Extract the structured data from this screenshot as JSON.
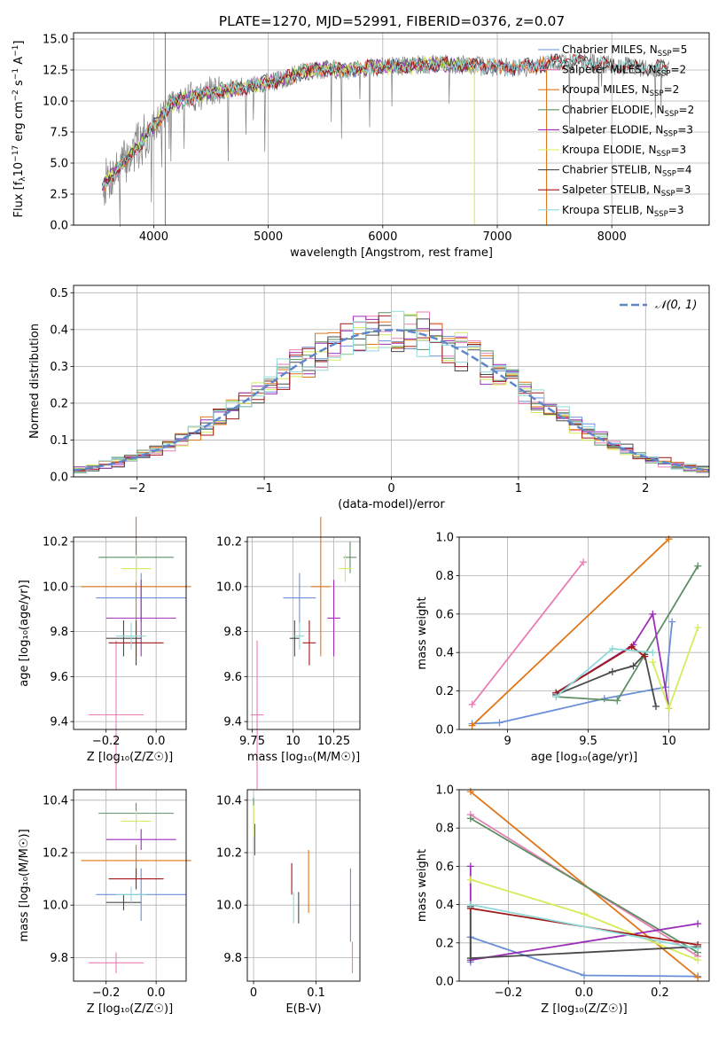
{
  "figure": {
    "title": "PLATE=1270, MJD=52991, FIBERID=0376, z=0.07"
  },
  "colors": {
    "Chabrier MILES": "#6a8fd8",
    "Salpeter MILES": "#e77fb6",
    "Kroupa MILES": "#e0761a",
    "Chabrier ELODIE": "#5f8f64",
    "Salpeter ELODIE": "#9b2fb8",
    "Kroupa ELODIE": "#d4ec5a",
    "Chabrier STELIB": "#4a4a4a",
    "Salpeter STELIB": "#a01818",
    "Kroupa STELIB": "#8fd9d9",
    "data": "#808080",
    "gaussian": "#5f86c9"
  },
  "chart_data": [
    {
      "id": "spectrum",
      "type": "line",
      "xlabel": "wavelength [Angstrom, rest frame]",
      "ylabel": "Flux [f$_\\lambda$10$^{-17}$ erg cm$^{-2}$ s$^{-1}$ A$^{-1}$]",
      "ylabel_parts": {
        "a": "Flux [f",
        "b": "λ",
        "c": "10",
        "d": "−17",
        "e": " erg cm",
        "f": "−2",
        "g": " s",
        "h": "−1",
        "i": " A",
        "j": "−1",
        "k": "]"
      },
      "xlim": [
        3300,
        8850
      ],
      "ylim": [
        0,
        15.5
      ],
      "xticks": [
        4000,
        5000,
        6000,
        7000,
        8000
      ],
      "yticks": [
        0.0,
        2.5,
        5.0,
        7.5,
        10.0,
        12.5,
        15.0
      ],
      "continuum": {
        "x": [
          3550,
          3700,
          3850,
          3950,
          4050,
          4150,
          4300,
          4500,
          4700,
          4900,
          5100,
          5300,
          5500,
          5700,
          5900,
          6100,
          6300,
          6500,
          6700,
          6900,
          7100,
          7300,
          7500,
          7700,
          7900,
          8100,
          8300,
          8500
        ],
        "y": [
          3.2,
          4.6,
          6.2,
          7.4,
          8.6,
          9.8,
          10.3,
          10.7,
          11.0,
          11.3,
          11.7,
          12.3,
          12.6,
          12.5,
          12.7,
          12.8,
          12.9,
          13.0,
          12.9,
          12.8,
          12.7,
          12.8,
          13.1,
          13.2,
          13.0,
          12.8,
          12.7,
          12.6
        ]
      },
      "series_names": [
        "Chabrier MILES",
        "Salpeter MILES",
        "Kroupa MILES",
        "Chabrier ELODIE",
        "Salpeter ELODIE",
        "Kroupa ELODIE",
        "Chabrier STELIB",
        "Salpeter STELIB",
        "Kroupa STELIB"
      ],
      "n_ssp": [
        5,
        2,
        2,
        2,
        3,
        3,
        4,
        3,
        3
      ],
      "legend_prefix": ", N",
      "legend_sub": "SSP",
      "legend_eq": "=",
      "model_ranges": [
        [
          3550,
          7450
        ],
        [
          3550,
          7450
        ],
        [
          3550,
          7450
        ],
        [
          3550,
          6800
        ],
        [
          3550,
          6800
        ],
        [
          3550,
          6800
        ],
        [
          3550,
          8500
        ],
        [
          3550,
          8500
        ],
        [
          3550,
          8500
        ]
      ]
    },
    {
      "id": "residuals",
      "type": "line",
      "xlabel": "(data-model)/error",
      "ylabel": "Normed distribution",
      "xlim": [
        -2.5,
        2.5
      ],
      "ylim": [
        0,
        0.52
      ],
      "xticks": [
        -2,
        -1,
        0,
        1,
        2
      ],
      "xtick_labels": [
        "−2",
        "−1",
        "0",
        "1",
        "2"
      ],
      "yticks": [
        0.0,
        0.1,
        0.2,
        0.3,
        0.4,
        0.5
      ],
      "legend_label": "𝒩(0, 1)",
      "bin_width": 0.1,
      "gaussian": {
        "mean": 0,
        "sigma": 1
      }
    },
    {
      "id": "age-vs-Z",
      "type": "errorbar",
      "xlabel": "Z [log₁₀(Z/Z☉)]",
      "ylabel": "age  [log₁₀(age/yr)]",
      "xlim": [
        -0.33,
        0.12
      ],
      "ylim": [
        9.365,
        10.22
      ],
      "xticks": [
        -0.2,
        0.0
      ],
      "xtick_labels": [
        "−0.2",
        "0.0"
      ],
      "yticks": [
        9.4,
        9.6,
        9.8,
        10.0,
        10.2
      ],
      "points": [
        {
          "x": -0.06,
          "xerr": 0.18,
          "y": 9.95,
          "yerr": 0.11
        },
        {
          "x": -0.16,
          "xerr": 0.11,
          "y": 9.43,
          "yerr": 0.33
        },
        {
          "x": -0.08,
          "xerr": 0.22,
          "y": 10.0,
          "yerr": 0.31
        },
        {
          "x": -0.08,
          "xerr": 0.15,
          "y": 10.13,
          "yerr": 0.07
        },
        {
          "x": -0.06,
          "xerr": 0.14,
          "y": 9.86,
          "yerr": 0.17
        },
        {
          "x": -0.08,
          "xerr": 0.06,
          "y": 10.08,
          "yerr": 0.06
        },
        {
          "x": -0.13,
          "xerr": 0.07,
          "y": 9.77,
          "yerr": 0.08
        },
        {
          "x": -0.08,
          "xerr": 0.11,
          "y": 9.75,
          "yerr": 0.1
        },
        {
          "x": -0.1,
          "xerr": 0.06,
          "y": 9.78,
          "yerr": 0.06
        }
      ]
    },
    {
      "id": "age-vs-mass",
      "type": "errorbar",
      "xlabel": "mass [log₁₀(M/M☉)]",
      "ylabel": "",
      "xlim": [
        9.72,
        10.41
      ],
      "ylim": [
        9.365,
        10.22
      ],
      "xticks": [
        9.75,
        10.0,
        10.25
      ],
      "yticks": [
        9.4,
        9.6,
        9.8,
        10.0,
        10.2
      ],
      "points": [
        {
          "x": 10.04,
          "xerr": 0.1,
          "y": 9.95,
          "yerr": 0.11
        },
        {
          "x": 9.78,
          "xerr": 0.04,
          "y": 9.43,
          "yerr": 0.33
        },
        {
          "x": 10.17,
          "xerr": 0.06,
          "y": 10.0,
          "yerr": 0.31
        },
        {
          "x": 10.35,
          "xerr": 0.04,
          "y": 10.13,
          "yerr": 0.07
        },
        {
          "x": 10.25,
          "xerr": 0.04,
          "y": 9.86,
          "yerr": 0.17
        },
        {
          "x": 10.32,
          "xerr": 0.04,
          "y": 10.08,
          "yerr": 0.06
        },
        {
          "x": 10.01,
          "xerr": 0.03,
          "y": 9.77,
          "yerr": 0.08
        },
        {
          "x": 10.1,
          "xerr": 0.04,
          "y": 9.75,
          "yerr": 0.1
        },
        {
          "x": 10.04,
          "xerr": 0.03,
          "y": 9.78,
          "yerr": 0.06
        }
      ]
    },
    {
      "id": "weight-vs-age",
      "type": "line",
      "xlabel": "age  [log₁₀(age/yr)]",
      "ylabel": "mass weight",
      "xlim": [
        8.7,
        10.25
      ],
      "ylim": [
        0,
        1
      ],
      "xticks": [
        9.0,
        9.5,
        10.0
      ],
      "yticks": [
        0.0,
        0.2,
        0.4,
        0.6,
        0.8,
        1.0
      ],
      "series": [
        {
          "x": [
            8.78,
            8.95,
            9.6,
            9.98,
            10.02
          ],
          "y": [
            0.03,
            0.035,
            0.16,
            0.22,
            0.56
          ]
        },
        {
          "x": [
            8.78,
            9.47
          ],
          "y": [
            0.13,
            0.87
          ]
        },
        {
          "x": [
            8.78,
            10.0
          ],
          "y": [
            0.02,
            0.99
          ]
        },
        {
          "x": [
            9.3,
            9.68,
            10.18
          ],
          "y": [
            0.17,
            0.15,
            0.85
          ]
        },
        {
          "x": [
            9.3,
            9.78,
            9.9,
            10.0
          ],
          "y": [
            0.19,
            0.44,
            0.6,
            0.11
          ]
        },
        {
          "x": [
            9.9,
            10.0,
            10.18
          ],
          "y": [
            0.35,
            0.11,
            0.53
          ]
        },
        {
          "x": [
            9.3,
            9.65,
            9.78,
            9.85,
            9.92
          ],
          "y": [
            0.18,
            0.3,
            0.33,
            0.39,
            0.12
          ]
        },
        {
          "x": [
            9.3,
            9.77,
            9.85
          ],
          "y": [
            0.19,
            0.43,
            0.38
          ]
        },
        {
          "x": [
            9.3,
            9.65,
            9.9
          ],
          "y": [
            0.17,
            0.42,
            0.4
          ]
        }
      ]
    },
    {
      "id": "mass-vs-Z",
      "type": "errorbar",
      "xlabel": "Z [log₁₀(Z/Z☉)]",
      "ylabel": "mass [log₁₀(M/M☉)]",
      "xlim": [
        -0.33,
        0.12
      ],
      "ylim": [
        9.71,
        10.44
      ],
      "xticks": [
        -0.2,
        0.0
      ],
      "xtick_labels": [
        "−0.2",
        "0.0"
      ],
      "yticks": [
        9.8,
        10.0,
        10.2,
        10.4
      ],
      "points": [
        {
          "x": -0.06,
          "xerr": 0.18,
          "y": 10.04,
          "yerr": 0.1
        },
        {
          "x": -0.16,
          "xerr": 0.11,
          "y": 9.78,
          "yerr": 0.04
        },
        {
          "x": -0.08,
          "xerr": 0.22,
          "y": 10.17,
          "yerr": 0.06
        },
        {
          "x": -0.08,
          "xerr": 0.15,
          "y": 10.35,
          "yerr": 0.04
        },
        {
          "x": -0.06,
          "xerr": 0.14,
          "y": 10.25,
          "yerr": 0.04
        },
        {
          "x": -0.08,
          "xerr": 0.06,
          "y": 10.32,
          "yerr": 0.04
        },
        {
          "x": -0.13,
          "xerr": 0.07,
          "y": 10.01,
          "yerr": 0.03
        },
        {
          "x": -0.08,
          "xerr": 0.11,
          "y": 10.1,
          "yerr": 0.04
        },
        {
          "x": -0.1,
          "xerr": 0.06,
          "y": 10.04,
          "yerr": 0.03
        }
      ]
    },
    {
      "id": "mass-vs-ebv",
      "type": "errorbar",
      "xlabel": "E(B-V)",
      "ylabel": "",
      "xlim": [
        -0.01,
        0.17
      ],
      "ylim": [
        9.71,
        10.44
      ],
      "xticks": [
        0.0,
        0.1
      ],
      "yticks": [
        9.8,
        10.0,
        10.2,
        10.4
      ],
      "points": [
        {
          "x": 0.155,
          "y": 10.0,
          "yerr": 0.14
        },
        {
          "x": 0.158,
          "y": 9.8,
          "yerr": 0.06
        },
        {
          "x": 0.088,
          "y": 10.09,
          "yerr": 0.12
        },
        {
          "x": 0.0,
          "y": 10.35,
          "yerr": 0.06
        },
        {
          "x": 0.002,
          "y": 10.25,
          "yerr": 0.06
        },
        {
          "x": 0.0,
          "y": 10.32,
          "yerr": 0.06
        },
        {
          "x": 0.072,
          "y": 9.99,
          "yerr": 0.06
        },
        {
          "x": 0.061,
          "y": 10.1,
          "yerr": 0.06
        },
        {
          "x": 0.064,
          "y": 9.99,
          "yerr": 0.06
        }
      ]
    },
    {
      "id": "weight-vs-Z",
      "type": "line",
      "xlabel": "Z [log₁₀(Z/Z☉)]",
      "ylabel": "mass weight",
      "xlim": [
        -0.33,
        0.33
      ],
      "ylim": [
        0,
        1
      ],
      "xticks": [
        -0.2,
        0.0,
        0.2
      ],
      "xtick_labels": [
        "−0.2",
        "0.0",
        "0.2"
      ],
      "yticks": [
        0.0,
        0.2,
        0.4,
        0.6,
        0.8,
        1.0
      ],
      "series": [
        {
          "x": [
            -0.3,
            -0.3,
            0.0,
            0.3
          ],
          "y": [
            0.1,
            0.23,
            0.03,
            0.025
          ]
        },
        {
          "x": [
            -0.3,
            0.3
          ],
          "y": [
            0.87,
            0.13
          ]
        },
        {
          "x": [
            -0.3,
            0.3
          ],
          "y": [
            0.99,
            0.02
          ]
        },
        {
          "x": [
            -0.3,
            0.3
          ],
          "y": [
            0.85,
            0.15
          ]
        },
        {
          "x": [
            -0.3,
            -0.3,
            0.3
          ],
          "y": [
            0.6,
            0.11,
            0.3
          ]
        },
        {
          "x": [
            -0.3,
            0.0,
            0.3
          ],
          "y": [
            0.53,
            0.35,
            0.11
          ]
        },
        {
          "x": [
            -0.3,
            -0.3,
            0.3
          ],
          "y": [
            0.39,
            0.12,
            0.18
          ]
        },
        {
          "x": [
            -0.3,
            0.3
          ],
          "y": [
            0.38,
            0.19
          ]
        },
        {
          "x": [
            -0.3,
            0.3
          ],
          "y": [
            0.4,
            0.17
          ]
        }
      ]
    }
  ]
}
